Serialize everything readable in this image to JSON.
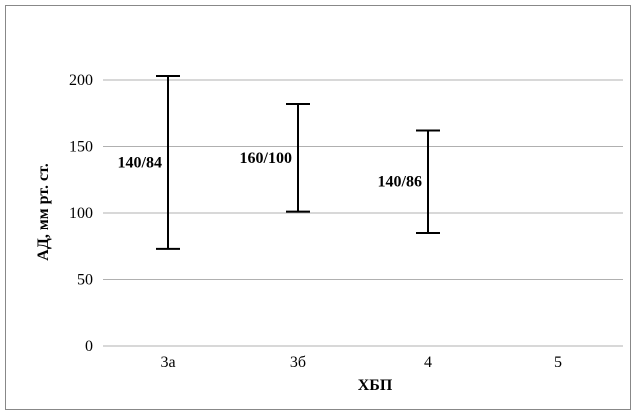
{
  "chart_data": {
    "type": "error-bar",
    "categories": [
      "3а",
      "3б",
      "4",
      "5"
    ],
    "series": [
      {
        "low": [
          73,
          101,
          85,
          null
        ],
        "high": [
          203,
          182,
          162,
          null
        ],
        "labels": [
          "140/84",
          "160/100",
          "140/86",
          null
        ]
      }
    ],
    "xlabel": "ХБП",
    "ylabel": "АД, мм рт. ст.",
    "ylim": [
      0,
      200
    ],
    "yticks": [
      0,
      50,
      100,
      150,
      200
    ],
    "grid": true,
    "line_color": "#000000",
    "grid_color": "#b0b0b0"
  }
}
